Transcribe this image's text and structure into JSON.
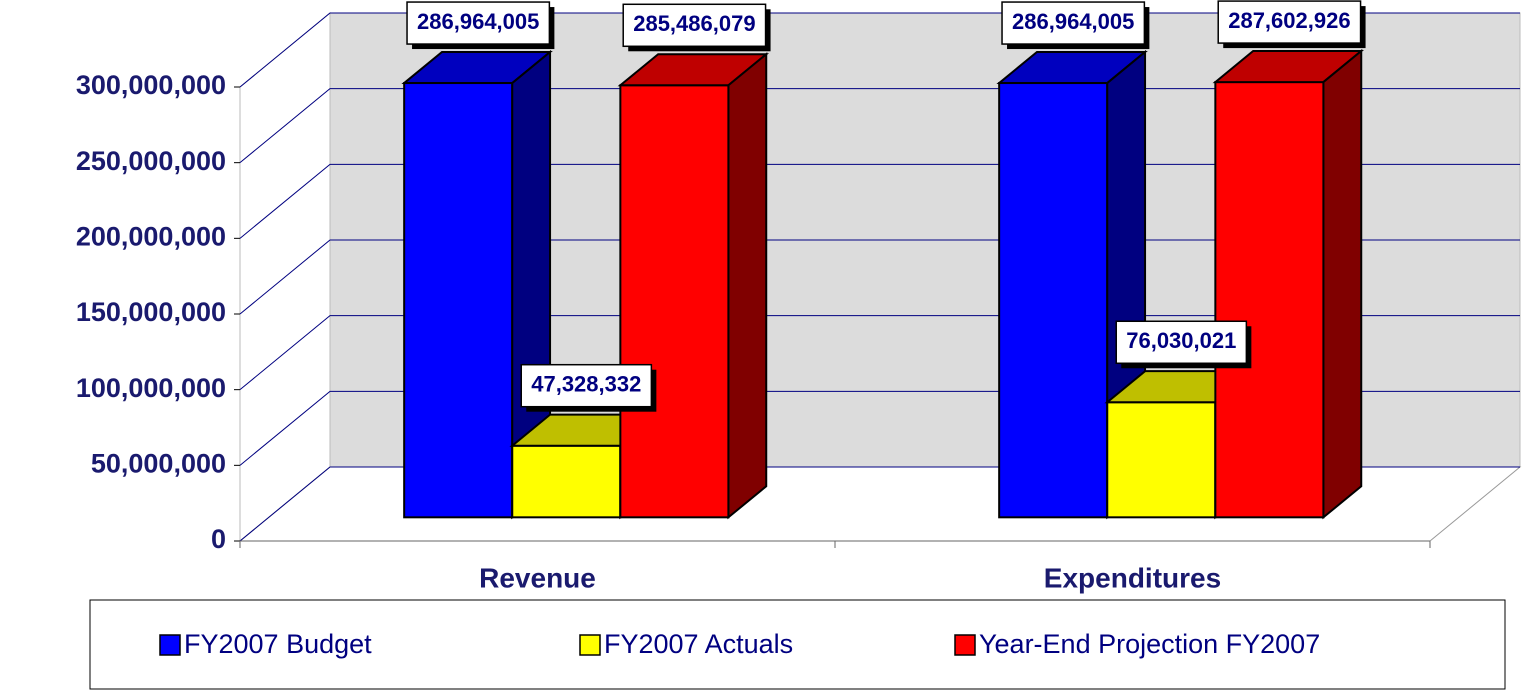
{
  "chart_data": {
    "type": "bar3d",
    "categories": [
      "Revenue",
      "Expenditures"
    ],
    "series": [
      {
        "name": "FY2007 Budget",
        "color": "#0000ff",
        "values": [
          286964005,
          286964005
        ],
        "value_labels": [
          "286,964,005",
          "286,964,005"
        ]
      },
      {
        "name": "FY2007 Actuals",
        "color": "#ffff00",
        "values": [
          47328332,
          76030021
        ],
        "value_labels": [
          "47,328,332",
          "76,030,021"
        ]
      },
      {
        "name": "Year-End Projection FY2007",
        "color": "#ff0000",
        "values": [
          285486079,
          287602926
        ],
        "value_labels": [
          "285,486,079",
          "287,602,926"
        ]
      }
    ],
    "ylim": [
      0,
      300000000
    ],
    "yticks": [
      {
        "value": 0,
        "label": "0"
      },
      {
        "value": 50000000,
        "label": "50,000,000"
      },
      {
        "value": 100000000,
        "label": "100,000,000"
      },
      {
        "value": 150000000,
        "label": "150,000,000"
      },
      {
        "value": 200000000,
        "label": "200,000,000"
      },
      {
        "value": 250000000,
        "label": "250,000,000"
      },
      {
        "value": 300000000,
        "label": "300,000,000"
      }
    ],
    "grid": true,
    "legend": "bottom"
  }
}
